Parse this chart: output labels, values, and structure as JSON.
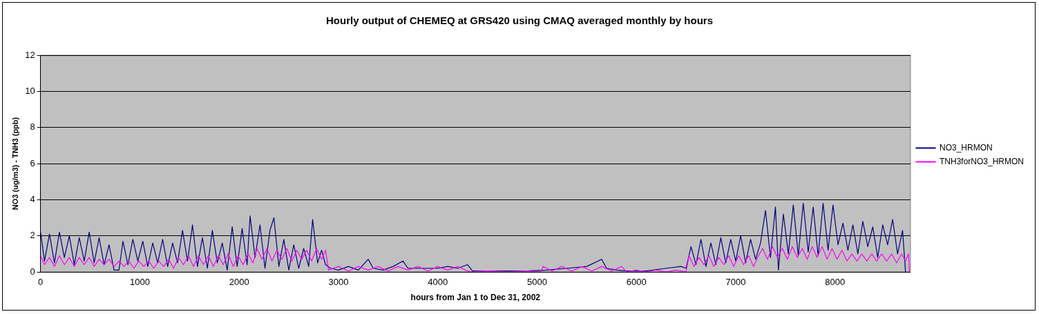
{
  "chart_data": {
    "type": "line",
    "title": "Hourly output of CHEMEQ at GRS420 using CMAQ averaged monthly by hours",
    "xlabel": "hours from Jan 1 to Dec 31, 2002",
    "ylabel": "NO3 (ug/m3) - TNH3 (ppb)",
    "xlim": [
      0,
      8760
    ],
    "xticks": [
      0,
      1000,
      2000,
      3000,
      4000,
      5000,
      6000,
      7000,
      8000
    ],
    "ylim": [
      0,
      12
    ],
    "yticks": [
      0,
      2,
      4,
      6,
      8,
      10,
      12
    ],
    "grid": "y",
    "legend": "right",
    "marker": "none",
    "line_style": "solid",
    "series": [
      {
        "name": "NO3_HRMON",
        "color": "#000080",
        "x": [
          0,
          40,
          90,
          140,
          190,
          240,
          290,
          340,
          390,
          440,
          490,
          540,
          590,
          640,
          690,
          740,
          790,
          830,
          880,
          930,
          980,
          1030,
          1080,
          1130,
          1180,
          1230,
          1280,
          1330,
          1380,
          1430,
          1480,
          1530,
          1580,
          1630,
          1680,
          1730,
          1780,
          1830,
          1880,
          1930,
          1980,
          2030,
          2080,
          2110,
          2160,
          2210,
          2260,
          2310,
          2350,
          2400,
          2450,
          2500,
          2550,
          2600,
          2650,
          2700,
          2740,
          2790,
          2830,
          2870,
          2920,
          3000,
          3100,
          3200,
          3300,
          3350,
          3450,
          3550,
          3650,
          3700,
          3800,
          3900,
          4000,
          4100,
          4200,
          4300,
          4350,
          4500,
          4700,
          4900,
          5100,
          5300,
          5500,
          5650,
          5700,
          5800,
          5900,
          6100,
          6300,
          6450,
          6500,
          6550,
          6600,
          6650,
          6700,
          6750,
          6800,
          6850,
          6900,
          6950,
          7000,
          7050,
          7100,
          7150,
          7200,
          7250,
          7300,
          7350,
          7400,
          7430,
          7480,
          7530,
          7580,
          7630,
          7680,
          7730,
          7780,
          7830,
          7880,
          7930,
          7980,
          8030,
          8080,
          8130,
          8180,
          8230,
          8280,
          8330,
          8380,
          8430,
          8480,
          8530,
          8580,
          8630,
          8680,
          8710
        ],
        "values": [
          2.2,
          0.6,
          2.1,
          0.5,
          2.2,
          0.8,
          2.0,
          0.4,
          1.9,
          0.6,
          2.2,
          0.5,
          1.9,
          0.4,
          1.5,
          0.1,
          0.1,
          1.7,
          0.4,
          1.8,
          0.6,
          1.7,
          0.3,
          1.6,
          0.5,
          1.8,
          0.3,
          1.6,
          0.5,
          2.3,
          0.6,
          2.6,
          0.3,
          1.9,
          0.2,
          2.3,
          0.5,
          1.6,
          0.1,
          2.5,
          0.3,
          2.4,
          0.4,
          3.1,
          0.8,
          2.6,
          0.2,
          2.3,
          3.0,
          0.3,
          1.8,
          0.1,
          1.5,
          0.2,
          1.3,
          0.3,
          2.9,
          0.5,
          1.2,
          0.4,
          0.2,
          0.1,
          0.3,
          0.1,
          0.7,
          0.2,
          0.1,
          0.3,
          0.6,
          0.2,
          0.2,
          0.2,
          0.2,
          0.3,
          0.2,
          0.4,
          0.05,
          0.05,
          0.05,
          0.05,
          0.1,
          0.2,
          0.3,
          0.7,
          0.2,
          0.1,
          0.05,
          0.05,
          0.2,
          0.3,
          0.2,
          1.4,
          0.4,
          1.8,
          0.3,
          1.6,
          0.4,
          1.9,
          0.5,
          1.8,
          0.6,
          2.0,
          0.5,
          1.8,
          0.7,
          1.6,
          3.4,
          0.8,
          3.6,
          0.1,
          3.2,
          1.0,
          3.7,
          0.9,
          3.8,
          1.1,
          3.6,
          0.9,
          3.8,
          1.2,
          3.7,
          1.5,
          2.7,
          1.2,
          2.6,
          1.0,
          2.8,
          1.4,
          2.5,
          0.8,
          2.6,
          1.5,
          2.9,
          1.0,
          2.3,
          0
        ]
      },
      {
        "name": "TNH3forNO3_HRMON",
        "color": "#ff00ff",
        "x": [
          0,
          40,
          90,
          140,
          190,
          240,
          290,
          340,
          390,
          440,
          490,
          540,
          590,
          640,
          690,
          740,
          790,
          840,
          890,
          940,
          990,
          1040,
          1090,
          1140,
          1190,
          1240,
          1290,
          1340,
          1390,
          1440,
          1490,
          1540,
          1590,
          1640,
          1690,
          1740,
          1790,
          1840,
          1890,
          1940,
          1990,
          2040,
          2090,
          2140,
          2180,
          2230,
          2280,
          2330,
          2380,
          2430,
          2480,
          2530,
          2580,
          2630,
          2680,
          2730,
          2780,
          2830,
          2870,
          2900,
          3000,
          3100,
          3200,
          3300,
          3400,
          3500,
          3600,
          3700,
          3800,
          3900,
          4000,
          4100,
          4200,
          4300,
          4330,
          4500,
          4700,
          4900,
          5040,
          5060,
          5150,
          5250,
          5350,
          5450,
          5550,
          5650,
          5750,
          5850,
          5900,
          6000,
          6100,
          6200,
          6300,
          6400,
          6500,
          6530,
          6580,
          6630,
          6680,
          6730,
          6780,
          6830,
          6880,
          6930,
          6980,
          7030,
          7080,
          7130,
          7180,
          7230,
          7270,
          7320,
          7370,
          7420,
          7470,
          7520,
          7570,
          7620,
          7670,
          7720,
          7770,
          7820,
          7870,
          7920,
          7970,
          8020,
          8070,
          8120,
          8170,
          8220,
          8270,
          8320,
          8370,
          8420,
          8470,
          8520,
          8570,
          8620,
          8670,
          8710,
          8740,
          8750
        ],
        "values": [
          0.9,
          0.4,
          0.8,
          0.3,
          0.9,
          0.4,
          0.8,
          0.3,
          0.8,
          0.4,
          0.8,
          0.3,
          0.7,
          0.4,
          0.7,
          0.3,
          0.6,
          0.3,
          0.6,
          0.2,
          0.6,
          0.3,
          0.6,
          0.2,
          0.6,
          0.3,
          0.7,
          0.2,
          0.8,
          0.4,
          0.9,
          0.3,
          0.9,
          0.4,
          0.9,
          0.3,
          0.9,
          0.4,
          1.0,
          0.3,
          0.9,
          0.4,
          1.0,
          0.5,
          1.3,
          0.7,
          1.3,
          0.6,
          1.2,
          0.7,
          1.3,
          0.6,
          1.2,
          0.7,
          1.2,
          0.6,
          1.3,
          0.7,
          1.2,
          0.1,
          0.3,
          0.05,
          0.3,
          0.1,
          0.3,
          0.05,
          0.3,
          0.1,
          0.3,
          0.05,
          0.3,
          0.1,
          0.3,
          0.05,
          0,
          0.05,
          0,
          0.05,
          0,
          0.3,
          0.05,
          0.3,
          0.05,
          0.3,
          0.05,
          0.3,
          0.05,
          0.3,
          0,
          0.1,
          0,
          0.1,
          0,
          0.1,
          0,
          0.9,
          0.3,
          0.8,
          0.4,
          0.9,
          0.3,
          0.8,
          0.4,
          0.9,
          0.3,
          0.9,
          0.4,
          0.9,
          0.3,
          0.9,
          1.3,
          0.7,
          1.4,
          0.8,
          1.3,
          0.7,
          1.4,
          0.8,
          1.3,
          0.7,
          1.4,
          0.8,
          1.4,
          0.7,
          1.3,
          0.7,
          1.2,
          0.6,
          1.0,
          0.6,
          1.0,
          0.6,
          1.0,
          0.6,
          1.0,
          0.6,
          1.0,
          0.5,
          1.0,
          0.6,
          1.0,
          0
        ]
      }
    ]
  }
}
